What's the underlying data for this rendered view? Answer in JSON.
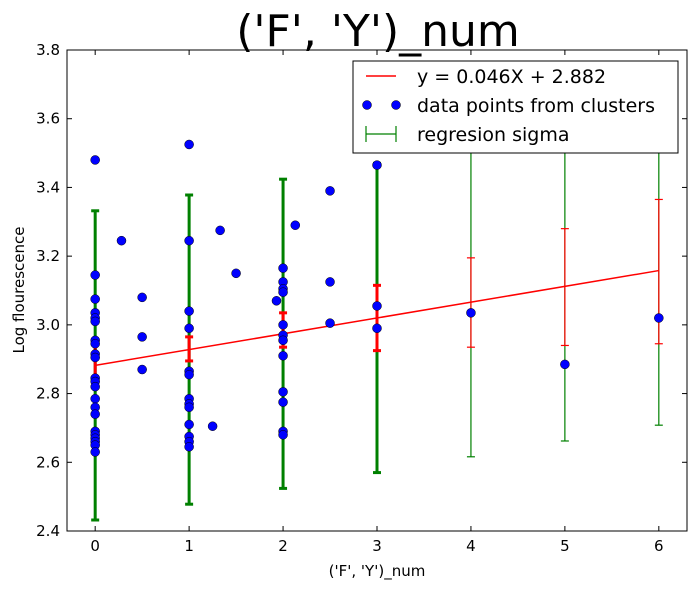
{
  "chart_data": {
    "type": "scatter",
    "title": "('F', 'Y')_num",
    "xlabel": "('F', 'Y')_num",
    "ylabel": "Log flourescence",
    "xlim": [
      -0.3,
      6.3
    ],
    "ylim": [
      2.4,
      3.8
    ],
    "xticks": [
      0,
      1,
      2,
      3,
      4,
      5,
      6
    ],
    "xtick_labels": [
      "0",
      "1",
      "2",
      "3",
      "4",
      "5",
      "6"
    ],
    "yticks": [
      2.4,
      2.6,
      2.8,
      3.0,
      3.2,
      3.4,
      3.6,
      3.8
    ],
    "ytick_labels": [
      "2.4",
      "2.6",
      "2.8",
      "3.0",
      "3.2",
      "3.4",
      "3.6",
      "3.8"
    ],
    "grid": false,
    "legend_position": "top-right",
    "regression": {
      "label": "y = 0.046X + 2.882",
      "slope": 0.046,
      "intercept": 2.882,
      "x_range": [
        0,
        6
      ],
      "color": "#ff0000"
    },
    "scatter_series": {
      "label": "data points from clusters",
      "color": "#0000ff",
      "points": [
        [
          0,
          3.48
        ],
        [
          0,
          3.145
        ],
        [
          0,
          3.075
        ],
        [
          0,
          3.035
        ],
        [
          0,
          3.02
        ],
        [
          0,
          3.01
        ],
        [
          0,
          2.955
        ],
        [
          0,
          2.945
        ],
        [
          0,
          2.915
        ],
        [
          0,
          2.905
        ],
        [
          0,
          2.845
        ],
        [
          0,
          2.835
        ],
        [
          0,
          2.82
        ],
        [
          0,
          2.785
        ],
        [
          0,
          2.76
        ],
        [
          0,
          2.74
        ],
        [
          0,
          2.69
        ],
        [
          0,
          2.68
        ],
        [
          0,
          2.67
        ],
        [
          0,
          2.66
        ],
        [
          0,
          2.65
        ],
        [
          0,
          2.63
        ],
        [
          0.28,
          3.245
        ],
        [
          0.5,
          3.08
        ],
        [
          0.5,
          2.965
        ],
        [
          0.5,
          2.87
        ],
        [
          1,
          3.525
        ],
        [
          1,
          3.245
        ],
        [
          1,
          3.04
        ],
        [
          1,
          2.99
        ],
        [
          1,
          2.865
        ],
        [
          1,
          2.855
        ],
        [
          1,
          2.785
        ],
        [
          1,
          2.77
        ],
        [
          1,
          2.76
        ],
        [
          1,
          2.71
        ],
        [
          1,
          2.675
        ],
        [
          1,
          2.66
        ],
        [
          1,
          2.645
        ],
        [
          1.25,
          2.705
        ],
        [
          1.33,
          3.275
        ],
        [
          1.5,
          3.15
        ],
        [
          1.93,
          3.07
        ],
        [
          2,
          3.165
        ],
        [
          2,
          3.125
        ],
        [
          2,
          3.105
        ],
        [
          2,
          3.095
        ],
        [
          2,
          3.0
        ],
        [
          2,
          2.97
        ],
        [
          2,
          2.955
        ],
        [
          2,
          2.91
        ],
        [
          2,
          2.805
        ],
        [
          2,
          2.775
        ],
        [
          2,
          2.69
        ],
        [
          2,
          2.68
        ],
        [
          2.13,
          3.29
        ],
        [
          2.5,
          3.39
        ],
        [
          2.5,
          3.125
        ],
        [
          2.5,
          3.005
        ],
        [
          3,
          3.465
        ],
        [
          3,
          3.055
        ],
        [
          3,
          2.99
        ],
        [
          4,
          3.035
        ],
        [
          5,
          2.885
        ],
        [
          6,
          3.02
        ]
      ]
    },
    "regression_sigma_errorbars": {
      "label": "regresion sigma",
      "color": "#008000",
      "bars": [
        {
          "x": 0,
          "low": 2.432,
          "high": 3.332
        },
        {
          "x": 1,
          "low": 2.478,
          "high": 3.378
        },
        {
          "x": 2,
          "low": 2.524,
          "high": 3.424
        },
        {
          "x": 3,
          "low": 2.57,
          "high": 3.47
        },
        {
          "x": 4,
          "low": 2.616,
          "high": 3.516
        },
        {
          "x": 5,
          "low": 2.662,
          "high": 3.562
        },
        {
          "x": 6,
          "low": 2.708,
          "high": 3.608
        }
      ]
    },
    "regression_fit_errorbars": {
      "color": "#ff0000",
      "bars": [
        {
          "x": 0,
          "low": 2.835,
          "high": 2.955
        },
        {
          "x": 1,
          "low": 2.895,
          "high": 2.965
        },
        {
          "x": 2,
          "low": 2.935,
          "high": 3.035
        },
        {
          "x": 3,
          "low": 2.925,
          "high": 3.115
        },
        {
          "x": 4,
          "low": 2.935,
          "high": 3.195
        },
        {
          "x": 5,
          "low": 2.94,
          "high": 3.28
        },
        {
          "x": 6,
          "low": 2.945,
          "high": 3.365
        }
      ]
    }
  }
}
